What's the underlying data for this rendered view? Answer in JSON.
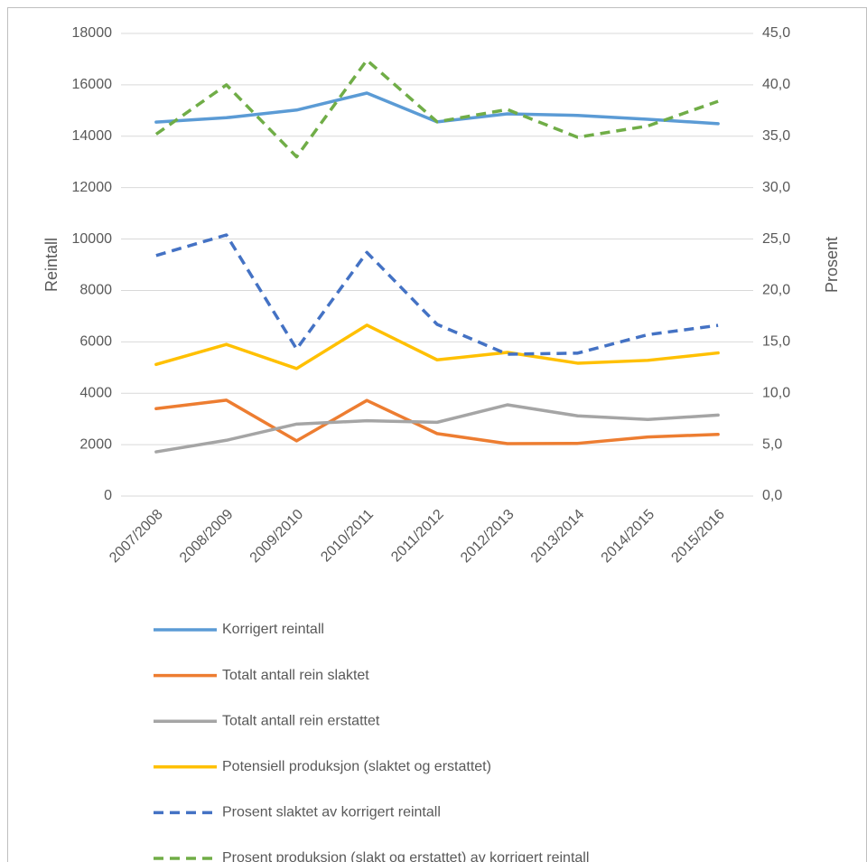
{
  "chart_data": {
    "type": "line",
    "ylabel": "Reintall",
    "y2label": "Prosent",
    "categories": [
      "2007/2008",
      "2008/2009",
      "2009/2010",
      "2010/2011",
      "2011/2012",
      "2012/2013",
      "2013/2014",
      "2014/2015",
      "2015/2016"
    ],
    "series": [
      {
        "name": "Korrigert reintall",
        "color": "#5b9bd5",
        "dashed": false,
        "values": [
          14550,
          14720,
          15020,
          15680,
          14560,
          14870,
          14810,
          14660,
          14490
        ]
      },
      {
        "name": "Totalt antall rein slaktet",
        "color": "#ed7d31",
        "dashed": false,
        "values": [
          3400,
          3730,
          2150,
          3720,
          2430,
          2040,
          2050,
          2300,
          2400
        ]
      },
      {
        "name": "Totalt antall rein erstattet",
        "color": "#a5a5a5",
        "dashed": false,
        "values": [
          1720,
          2170,
          2800,
          2930,
          2870,
          3550,
          3120,
          2980,
          3150
        ]
      },
      {
        "name": "Potensiell produksjon (slaktet og erstattet)",
        "color": "#ffc000",
        "dashed": false,
        "values": [
          5120,
          5900,
          4960,
          6650,
          5300,
          5590,
          5170,
          5280,
          5570
        ]
      },
      {
        "name": "Prosent slaktet av korrigert reintall",
        "color": "#4472c4",
        "dashed": true,
        "axis": "y2",
        "values": [
          23.4,
          25.4,
          14.3,
          23.7,
          16.7,
          13.8,
          13.9,
          15.7,
          16.6
        ]
      },
      {
        "name": "Prosent produksjon (slakt og erstattet) av korrigert reintall",
        "color": "#70ad47",
        "dashed": true,
        "axis": "y2",
        "values": [
          35.2,
          40.0,
          33.0,
          42.4,
          36.4,
          37.6,
          34.9,
          36.0,
          38.4
        ]
      }
    ],
    "ylim": [
      0,
      18000
    ],
    "yticks": [
      0,
      2000,
      4000,
      6000,
      8000,
      10000,
      12000,
      14000,
      16000,
      18000
    ],
    "y2lim": [
      0,
      45
    ],
    "y2ticks": [
      {
        "value": 0,
        "label": "0,0"
      },
      {
        "value": 5,
        "label": "5,0"
      },
      {
        "value": 10,
        "label": "10,0"
      },
      {
        "value": 15,
        "label": "15,0"
      },
      {
        "value": 20,
        "label": "20,0"
      },
      {
        "value": 25,
        "label": "25,0"
      },
      {
        "value": 30,
        "label": "30,0"
      },
      {
        "value": 35,
        "label": "35,0"
      },
      {
        "value": 40,
        "label": "40,0"
      },
      {
        "value": 45,
        "label": "45,0"
      }
    ],
    "grid": true,
    "legend": "bottom"
  }
}
